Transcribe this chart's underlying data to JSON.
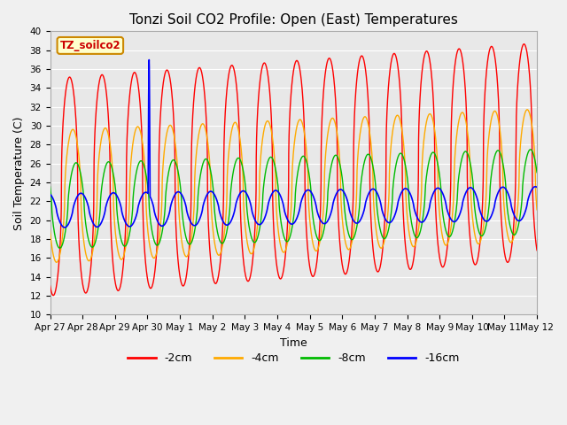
{
  "title": "Tonzi Soil CO2 Profile: Open (East) Temperatures",
  "xlabel": "Time",
  "ylabel": "Soil Temperature (C)",
  "ylim": [
    10,
    40
  ],
  "colors": {
    "-2cm": "#ff0000",
    "-4cm": "#ffaa00",
    "-8cm": "#00bb00",
    "-16cm": "#0000ff"
  },
  "tick_labels": [
    "Apr 27",
    "Apr 28",
    "Apr 29",
    "Apr 30",
    "May 1",
    "May 2",
    "May 3",
    "May 4",
    "May 5",
    "May 6",
    "May 7",
    "May 8",
    "May 9",
    "May 10",
    "May 11",
    "May 12"
  ],
  "annotation_text": "TZ_soilco2",
  "annotation_box_facecolor": "#ffffcc",
  "annotation_box_edgecolor": "#cc8800",
  "annotation_text_color": "#cc0000",
  "fig_facecolor": "#f0f0f0",
  "ax_facecolor": "#e8e8e8",
  "grid_color": "#ffffff",
  "title_fontsize": 11,
  "label_fontsize": 9,
  "tick_fontsize": 7.5
}
